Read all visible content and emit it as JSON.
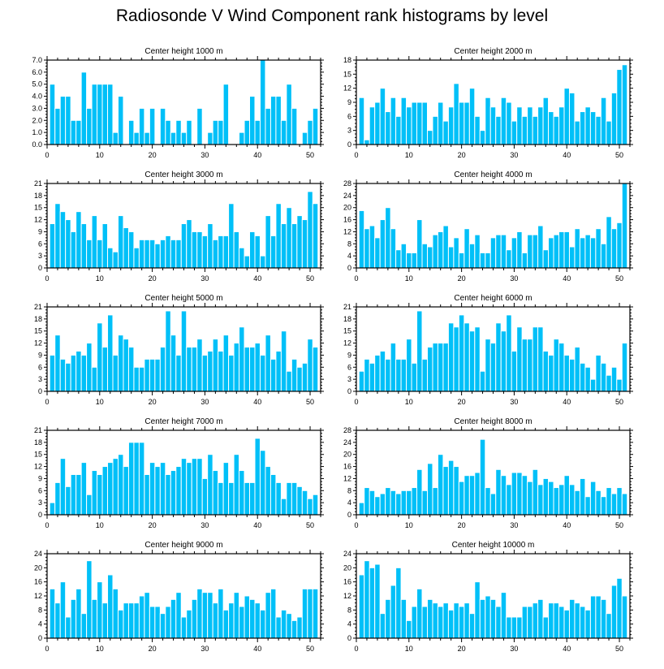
{
  "title": "Radiosonde V Wind Component rank histograms by level",
  "colors": {
    "bar": "#00c0f8",
    "bar_edge": "#ffffff",
    "axis": "#000000"
  },
  "chart_data": [
    {
      "type": "bar",
      "title": "Center height 1000 m",
      "x": [
        1,
        2,
        3,
        4,
        5,
        6,
        7,
        8,
        9,
        10,
        11,
        12,
        13,
        14,
        15,
        16,
        17,
        18,
        19,
        20,
        21,
        22,
        23,
        24,
        25,
        26,
        27,
        28,
        29,
        30,
        31,
        32,
        33,
        34,
        35,
        36,
        37,
        38,
        39,
        40,
        41,
        42,
        43,
        44,
        45,
        46,
        47,
        48,
        49,
        50,
        51
      ],
      "values": [
        5,
        3,
        4,
        4,
        2,
        2,
        6,
        3,
        5,
        5,
        5,
        5,
        1,
        4,
        0,
        2,
        1,
        3,
        1,
        3,
        0,
        3,
        2,
        1,
        2,
        1,
        2,
        0,
        3,
        0,
        1,
        2,
        2,
        5,
        0,
        0,
        1,
        2,
        4,
        2,
        7,
        3,
        4,
        4,
        2,
        5,
        3,
        0,
        1,
        2,
        3
      ],
      "ylim": [
        0,
        7
      ],
      "yticks": [
        "0.0",
        "1.0",
        "2.0",
        "3.0",
        "4.0",
        "5.0",
        "6.0",
        "7.0"
      ],
      "xlim": [
        0,
        52
      ],
      "xticks": [
        "0",
        "10",
        "20",
        "30",
        "40",
        "50"
      ]
    },
    {
      "type": "bar",
      "title": "Center height 2000 m",
      "x": [
        1,
        2,
        3,
        4,
        5,
        6,
        7,
        8,
        9,
        10,
        11,
        12,
        13,
        14,
        15,
        16,
        17,
        18,
        19,
        20,
        21,
        22,
        23,
        24,
        25,
        26,
        27,
        28,
        29,
        30,
        31,
        32,
        33,
        34,
        35,
        36,
        37,
        38,
        39,
        40,
        41,
        42,
        43,
        44,
        45,
        46,
        47,
        48,
        49,
        50,
        51
      ],
      "values": [
        10,
        1,
        8,
        9,
        12,
        7,
        10,
        6,
        10,
        8,
        9,
        9,
        9,
        3,
        6,
        9,
        5,
        8,
        13,
        9,
        9,
        12,
        6,
        3,
        10,
        8,
        6,
        10,
        9,
        5,
        8,
        6,
        8,
        6,
        8,
        10,
        7,
        6,
        8,
        12,
        11,
        5,
        7,
        8,
        7,
        6,
        10,
        5,
        11,
        16,
        17
      ],
      "ylim": [
        0,
        18
      ],
      "yticks": [
        "0",
        "3",
        "6",
        "9",
        "12",
        "15",
        "18"
      ],
      "xlim": [
        0,
        52
      ],
      "xticks": [
        "0",
        "10",
        "20",
        "30",
        "40",
        "50"
      ]
    },
    {
      "type": "bar",
      "title": "Center height 3000 m",
      "x": [
        1,
        2,
        3,
        4,
        5,
        6,
        7,
        8,
        9,
        10,
        11,
        12,
        13,
        14,
        15,
        16,
        17,
        18,
        19,
        20,
        21,
        22,
        23,
        24,
        25,
        26,
        27,
        28,
        29,
        30,
        31,
        32,
        33,
        34,
        35,
        36,
        37,
        38,
        39,
        40,
        41,
        42,
        43,
        44,
        45,
        46,
        47,
        48,
        49,
        50,
        51
      ],
      "values": [
        11,
        16,
        14,
        12,
        9,
        14,
        11,
        7,
        13,
        7,
        11,
        5,
        4,
        13,
        10,
        9,
        5,
        7,
        7,
        7,
        6,
        7,
        8,
        7,
        7,
        11,
        12,
        9,
        9,
        8,
        11,
        7,
        8,
        8,
        16,
        9,
        5,
        3,
        9,
        8,
        3,
        13,
        8,
        16,
        11,
        15,
        11,
        13,
        12,
        19,
        16
      ],
      "ylim": [
        0,
        21
      ],
      "yticks": [
        "0",
        "3",
        "6",
        "9",
        "12",
        "15",
        "18",
        "21"
      ],
      "xlim": [
        0,
        52
      ],
      "xticks": [
        "0",
        "10",
        "20",
        "30",
        "40",
        "50"
      ]
    },
    {
      "type": "bar",
      "title": "Center height 4000 m",
      "x": [
        1,
        2,
        3,
        4,
        5,
        6,
        7,
        8,
        9,
        10,
        11,
        12,
        13,
        14,
        15,
        16,
        17,
        18,
        19,
        20,
        21,
        22,
        23,
        24,
        25,
        26,
        27,
        28,
        29,
        30,
        31,
        32,
        33,
        34,
        35,
        36,
        37,
        38,
        39,
        40,
        41,
        42,
        43,
        44,
        45,
        46,
        47,
        48,
        49,
        50,
        51
      ],
      "values": [
        19,
        13,
        14,
        10,
        16,
        20,
        13,
        6,
        8,
        5,
        5,
        16,
        8,
        7,
        11,
        12,
        14,
        7,
        10,
        5,
        13,
        8,
        11,
        5,
        5,
        10,
        11,
        11,
        6,
        10,
        12,
        5,
        11,
        11,
        14,
        6,
        10,
        11,
        12,
        12,
        7,
        13,
        10,
        11,
        10,
        13,
        8,
        17,
        13,
        15,
        28
      ],
      "ylim": [
        0,
        28
      ],
      "yticks": [
        "0",
        "4",
        "8",
        "12",
        "16",
        "20",
        "24",
        "28"
      ],
      "xlim": [
        0,
        52
      ],
      "xticks": [
        "0",
        "10",
        "20",
        "30",
        "40",
        "50"
      ]
    },
    {
      "type": "bar",
      "title": "Center height 5000 m",
      "x": [
        1,
        2,
        3,
        4,
        5,
        6,
        7,
        8,
        9,
        10,
        11,
        12,
        13,
        14,
        15,
        16,
        17,
        18,
        19,
        20,
        21,
        22,
        23,
        24,
        25,
        26,
        27,
        28,
        29,
        30,
        31,
        32,
        33,
        34,
        35,
        36,
        37,
        38,
        39,
        40,
        41,
        42,
        43,
        44,
        45,
        46,
        47,
        48,
        49,
        50,
        51
      ],
      "values": [
        9,
        14,
        8,
        7,
        9,
        10,
        9,
        12,
        6,
        17,
        11,
        19,
        9,
        14,
        13,
        11,
        6,
        6,
        8,
        8,
        8,
        11,
        20,
        14,
        9,
        20,
        11,
        11,
        13,
        9,
        10,
        13,
        10,
        14,
        9,
        12,
        16,
        11,
        11,
        12,
        9,
        14,
        8,
        10,
        15,
        5,
        8,
        6,
        7,
        13,
        11
      ],
      "ylim": [
        0,
        21
      ],
      "yticks": [
        "0",
        "3",
        "6",
        "9",
        "12",
        "15",
        "18",
        "21"
      ],
      "xlim": [
        0,
        52
      ],
      "xticks": [
        "0",
        "10",
        "20",
        "30",
        "40",
        "50"
      ]
    },
    {
      "type": "bar",
      "title": "Center height 6000 m",
      "x": [
        1,
        2,
        3,
        4,
        5,
        6,
        7,
        8,
        9,
        10,
        11,
        12,
        13,
        14,
        15,
        16,
        17,
        18,
        19,
        20,
        21,
        22,
        23,
        24,
        25,
        26,
        27,
        28,
        29,
        30,
        31,
        32,
        33,
        34,
        35,
        36,
        37,
        38,
        39,
        40,
        41,
        42,
        43,
        44,
        45,
        46,
        47,
        48,
        49,
        50,
        51
      ],
      "values": [
        5,
        8,
        7,
        9,
        10,
        8,
        12,
        8,
        8,
        13,
        7,
        20,
        8,
        11,
        12,
        12,
        12,
        17,
        16,
        19,
        17,
        15,
        16,
        5,
        13,
        12,
        17,
        15,
        19,
        10,
        16,
        13,
        13,
        16,
        16,
        10,
        9,
        13,
        12,
        9,
        8,
        11,
        7,
        6,
        3,
        9,
        7,
        4,
        6,
        3,
        12
      ],
      "ylim": [
        0,
        21
      ],
      "yticks": [
        "0",
        "3",
        "6",
        "9",
        "12",
        "15",
        "18",
        "21"
      ],
      "xlim": [
        0,
        52
      ],
      "xticks": [
        "0",
        "10",
        "20",
        "30",
        "40",
        "50"
      ]
    },
    {
      "type": "bar",
      "title": "Center height 7000 m",
      "x": [
        1,
        2,
        3,
        4,
        5,
        6,
        7,
        8,
        9,
        10,
        11,
        12,
        13,
        14,
        15,
        16,
        17,
        18,
        19,
        20,
        21,
        22,
        23,
        24,
        25,
        26,
        27,
        28,
        29,
        30,
        31,
        32,
        33,
        34,
        35,
        36,
        37,
        38,
        39,
        40,
        41,
        42,
        43,
        44,
        45,
        46,
        47,
        48,
        49,
        50,
        51
      ],
      "values": [
        3,
        8,
        14,
        7,
        10,
        10,
        13,
        5,
        11,
        10,
        12,
        13,
        14,
        15,
        12,
        18,
        18,
        18,
        10,
        13,
        12,
        13,
        10,
        11,
        12,
        14,
        13,
        14,
        14,
        9,
        15,
        11,
        8,
        13,
        8,
        15,
        11,
        8,
        8,
        19,
        16,
        12,
        10,
        8,
        4,
        8,
        8,
        7,
        6,
        4,
        5
      ],
      "ylim": [
        0,
        21
      ],
      "yticks": [
        "0",
        "3",
        "6",
        "9",
        "12",
        "15",
        "18",
        "21"
      ],
      "xlim": [
        0,
        52
      ],
      "xticks": [
        "0",
        "10",
        "20",
        "30",
        "40",
        "50"
      ]
    },
    {
      "type": "bar",
      "title": "Center height 8000 m",
      "x": [
        1,
        2,
        3,
        4,
        5,
        6,
        7,
        8,
        9,
        10,
        11,
        12,
        13,
        14,
        15,
        16,
        17,
        18,
        19,
        20,
        21,
        22,
        23,
        24,
        25,
        26,
        27,
        28,
        29,
        30,
        31,
        32,
        33,
        34,
        35,
        36,
        37,
        38,
        39,
        40,
        41,
        42,
        43,
        44,
        45,
        46,
        47,
        48,
        49,
        50,
        51
      ],
      "values": [
        4,
        9,
        8,
        6,
        7,
        9,
        8,
        7,
        8,
        8,
        9,
        15,
        8,
        17,
        9,
        20,
        16,
        18,
        16,
        11,
        13,
        13,
        14,
        25,
        9,
        7,
        15,
        13,
        10,
        14,
        14,
        13,
        11,
        15,
        10,
        12,
        11,
        9,
        10,
        13,
        10,
        8,
        12,
        6,
        11,
        8,
        6,
        9,
        7,
        9,
        7
      ],
      "ylim": [
        0,
        28
      ],
      "yticks": [
        "0",
        "4",
        "8",
        "12",
        "16",
        "20",
        "24",
        "28"
      ],
      "xlim": [
        0,
        52
      ],
      "xticks": [
        "0",
        "10",
        "20",
        "30",
        "40",
        "50"
      ]
    },
    {
      "type": "bar",
      "title": "Center height 9000 m",
      "x": [
        1,
        2,
        3,
        4,
        5,
        6,
        7,
        8,
        9,
        10,
        11,
        12,
        13,
        14,
        15,
        16,
        17,
        18,
        19,
        20,
        21,
        22,
        23,
        24,
        25,
        26,
        27,
        28,
        29,
        30,
        31,
        32,
        33,
        34,
        35,
        36,
        37,
        38,
        39,
        40,
        41,
        42,
        43,
        44,
        45,
        46,
        47,
        48,
        49,
        50,
        51
      ],
      "values": [
        14,
        10,
        16,
        6,
        11,
        14,
        7,
        22,
        11,
        16,
        10,
        18,
        14,
        8,
        10,
        10,
        10,
        12,
        13,
        9,
        9,
        7,
        9,
        11,
        13,
        6,
        8,
        11,
        14,
        13,
        13,
        10,
        14,
        8,
        10,
        13,
        9,
        12,
        11,
        10,
        8,
        13,
        14,
        6,
        8,
        7,
        5,
        6,
        14,
        14,
        14
      ],
      "ylim": [
        0,
        24
      ],
      "yticks": [
        "0",
        "4",
        "8",
        "12",
        "16",
        "20",
        "24"
      ],
      "xlim": [
        0,
        52
      ],
      "xticks": [
        "0",
        "10",
        "20",
        "30",
        "40",
        "50"
      ]
    },
    {
      "type": "bar",
      "title": "Center height 10000 m",
      "x": [
        1,
        2,
        3,
        4,
        5,
        6,
        7,
        8,
        9,
        10,
        11,
        12,
        13,
        14,
        15,
        16,
        17,
        18,
        19,
        20,
        21,
        22,
        23,
        24,
        25,
        26,
        27,
        28,
        29,
        30,
        31,
        32,
        33,
        34,
        35,
        36,
        37,
        38,
        39,
        40,
        41,
        42,
        43,
        44,
        45,
        46,
        47,
        48,
        49,
        50,
        51
      ],
      "values": [
        18,
        22,
        20,
        21,
        7,
        11,
        15,
        20,
        11,
        5,
        9,
        14,
        9,
        11,
        10,
        9,
        10,
        8,
        10,
        9,
        10,
        7,
        16,
        11,
        12,
        11,
        9,
        13,
        6,
        6,
        6,
        9,
        9,
        10,
        11,
        6,
        10,
        10,
        9,
        8,
        11,
        10,
        9,
        8,
        12,
        12,
        11,
        7,
        15,
        17,
        12
      ],
      "ylim": [
        0,
        24
      ],
      "yticks": [
        "0",
        "4",
        "8",
        "12",
        "16",
        "20",
        "24"
      ],
      "xlim": [
        0,
        52
      ],
      "xticks": [
        "0",
        "10",
        "20",
        "30",
        "40",
        "50"
      ]
    }
  ]
}
